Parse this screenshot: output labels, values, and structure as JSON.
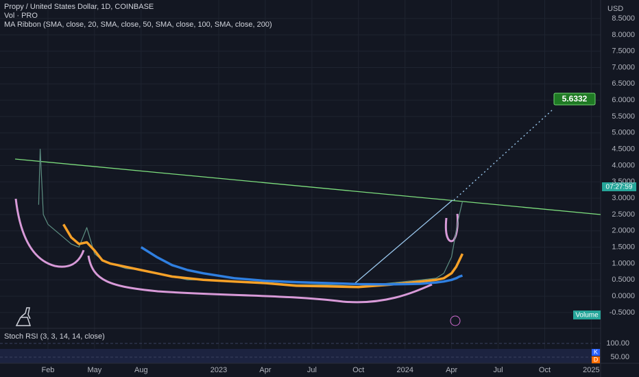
{
  "header": {
    "symbol": "Propy / United States Dollar, 1D, COINBASE",
    "volume": "Vol · PRO",
    "ma_ribbon": "MA Ribbon (SMA, close, 20, SMA, close, 50, SMA, close, 100, SMA, close, 200)"
  },
  "chart_data": {
    "type": "line",
    "x": [
      -0.6,
      -0.5,
      -0.3,
      0,
      0.5,
      1,
      1.5,
      2,
      2.5,
      3,
      3.5,
      4,
      5,
      6,
      7,
      8,
      9,
      10,
      12,
      14,
      16,
      18,
      20,
      22,
      23,
      24,
      25,
      25.5,
      26,
      26.3,
      26.5,
      26.7
    ],
    "series": [
      {
        "color": "#5d8f82",
        "values": [
          2.8,
          4.5,
          2.5,
          2.2,
          2.0,
          1.8,
          1.6,
          1.5,
          2.1,
          1.3,
          1.1,
          1.0,
          0.85,
          0.8,
          0.7,
          0.6,
          0.5,
          0.5,
          0.45,
          0.42,
          0.35,
          0.35,
          0.3,
          0.4,
          0.45,
          0.5,
          0.55,
          0.7,
          1.2,
          2.0,
          2.5,
          2.9
        ]
      },
      {
        "color": "#f7a128",
        "values": [
          null,
          null,
          null,
          null,
          null,
          2.2,
          1.8,
          1.6,
          1.65,
          1.4,
          1.1,
          1.0,
          0.9,
          0.8,
          0.7,
          0.6,
          0.55,
          0.5,
          0.45,
          0.4,
          0.32,
          0.3,
          0.28,
          0.35,
          0.4,
          0.45,
          0.5,
          0.55,
          0.7,
          0.9,
          1.1,
          1.3
        ]
      },
      {
        "color": "#2f7fe0",
        "values": [
          null,
          null,
          null,
          null,
          null,
          null,
          null,
          null,
          null,
          null,
          null,
          null,
          null,
          1.5,
          1.2,
          0.95,
          0.8,
          0.7,
          0.55,
          0.47,
          0.43,
          0.4,
          0.37,
          0.36,
          0.37,
          0.38,
          0.42,
          0.45,
          0.5,
          0.55,
          0.6,
          0.63
        ]
      }
    ],
    "xlim": [
      -3.09,
      35.6
    ],
    "xticks": [
      {
        "value": 0,
        "label": "Feb"
      },
      {
        "value": 3,
        "label": "May"
      },
      {
        "value": 6,
        "label": "Aug"
      },
      {
        "value": 11,
        "label": "2023"
      },
      {
        "value": 14,
        "label": "Apr"
      },
      {
        "value": 17,
        "label": "Jul"
      },
      {
        "value": 20,
        "label": "Oct"
      },
      {
        "value": 23,
        "label": "2024"
      },
      {
        "value": 26,
        "label": "Apr"
      },
      {
        "value": 29,
        "label": "Jul"
      },
      {
        "value": 32,
        "label": "Oct"
      },
      {
        "value": 35,
        "label": "2025"
      }
    ],
    "ylim": [
      -0.984,
      9.067
    ],
    "yticks": [
      {
        "value": -0.5,
        "label": "-0.5000"
      },
      {
        "value": 0,
        "label": "0.0000"
      },
      {
        "value": 0.5,
        "label": "0.5000"
      },
      {
        "value": 1,
        "label": "1.0000"
      },
      {
        "value": 1.5,
        "label": "1.5000"
      },
      {
        "value": 2,
        "label": "2.0000"
      },
      {
        "value": 2.5,
        "label": "2.5000"
      },
      {
        "value": 3,
        "label": "3.0000"
      },
      {
        "value": 3.5,
        "label": "3.5000"
      },
      {
        "value": 4,
        "label": "4.0000"
      },
      {
        "value": 4.5,
        "label": "4.5000"
      },
      {
        "value": 5,
        "label": "5.0000"
      },
      {
        "value": 5.5,
        "label": "5.5000"
      },
      {
        "value": 6,
        "label": "6.0000"
      },
      {
        "value": 6.5,
        "label": "6.5000"
      },
      {
        "value": 7,
        "label": "7.0000"
      },
      {
        "value": 7.5,
        "label": "7.5000"
      },
      {
        "value": 8,
        "label": "8.0000"
      },
      {
        "value": 8.5,
        "label": "8.5000"
      }
    ],
    "y_unit": "USD",
    "annotations": {
      "target": "5.6332",
      "countdown": "07:27:59",
      "volume_label": "Volume"
    }
  },
  "stoch_rsi": {
    "title": "Stoch RSI (3, 3, 14, 14, close)",
    "ylim": [
      27.5,
      147.5
    ],
    "yticks": [
      {
        "value": 100,
        "label": "100.00"
      },
      {
        "value": 50,
        "label": "50.00"
      }
    ],
    "k": "K",
    "d": "D"
  }
}
